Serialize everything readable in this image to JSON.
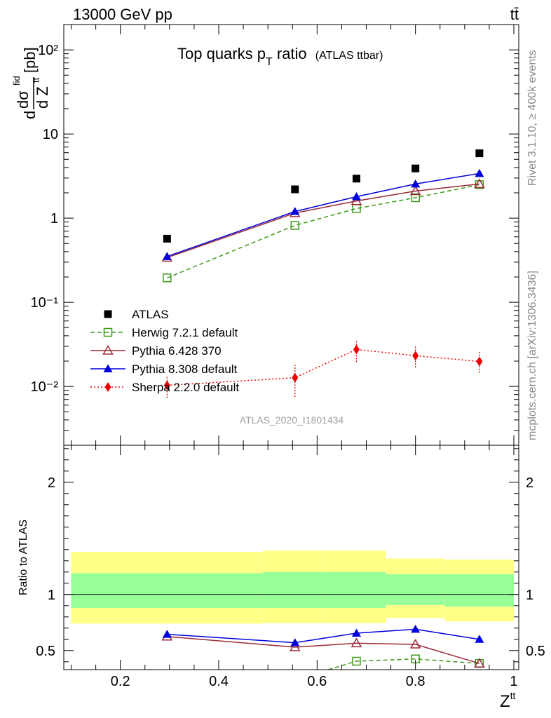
{
  "header": {
    "left": "13000 GeV pp",
    "right": "tt̄"
  },
  "side_text": {
    "rivet": "Rivet 3.1.10, ≥ 400k events",
    "mcplots": "mcplots.cern.ch [arXiv:1306.3436]"
  },
  "analysis_id": "ATLAS_2020_I1801434",
  "chart_data": [
    {
      "type": "scatter",
      "title": "Top quarks p",
      "title_sub": "T",
      "title_tail": " ratio",
      "title_small": "(ATLAS ttbar)",
      "ylabel_parts": [
        "d",
        "dσ",
        "fid",
        "d Z",
        "tt",
        "[pb]"
      ],
      "yscale": "log",
      "ylim": [
        0.002,
        200
      ],
      "xlim": [
        0.085,
        1.01
      ],
      "ytick_labels": [
        "10⁻²",
        "10⁻¹",
        "1",
        "10",
        "10²"
      ],
      "ytick_values": [
        0.01,
        0.1,
        1,
        10,
        100
      ],
      "legend_position": "bottom-left",
      "series": [
        {
          "name": "ATLAS",
          "color": "#000000",
          "marker": "square-filled",
          "line": "none",
          "x": [
            0.295,
            0.555,
            0.68,
            0.8,
            0.93
          ],
          "y": [
            0.57,
            2.2,
            2.95,
            3.9,
            5.9
          ]
        },
        {
          "name": "Herwig 7.2.1 default",
          "color": "#3d9a1b",
          "marker": "square-open",
          "line": "dashed",
          "x": [
            0.295,
            0.555,
            0.68,
            0.8,
            0.93
          ],
          "y": [
            0.195,
            0.82,
            1.3,
            1.75,
            2.5
          ]
        },
        {
          "name": "Pythia 6.428 370",
          "color": "#9c2a3a",
          "marker": "triangle-open",
          "line": "solid",
          "x": [
            0.295,
            0.555,
            0.68,
            0.8,
            0.93
          ],
          "y": [
            0.34,
            1.15,
            1.6,
            2.1,
            2.55
          ]
        },
        {
          "name": "Pythia 8.308 default",
          "color": "#0000dd",
          "marker": "triangle-filled",
          "line": "solid",
          "x": [
            0.295,
            0.555,
            0.68,
            0.8,
            0.93
          ],
          "y": [
            0.35,
            1.2,
            1.8,
            2.55,
            3.4
          ]
        },
        {
          "name": "Sherpa 2.2.0 default",
          "color": "#ee0000",
          "marker": "diamond-filled",
          "line": "dotted",
          "x": [
            0.295,
            0.555,
            0.68,
            0.8,
            0.93
          ],
          "y": [
            0.0103,
            0.0127,
            0.0275,
            0.0232,
            0.0198
          ],
          "err_lo": [
            0.0073,
            0.0075,
            0.0195,
            0.0168,
            0.0145
          ],
          "err_hi": [
            0.0135,
            0.0185,
            0.036,
            0.031,
            0.0265
          ]
        }
      ]
    },
    {
      "type": "line",
      "ylabel": "Ratio to ATLAS",
      "xlabel": "Z",
      "xlabel_sup": "tt",
      "ylim": [
        0.33,
        2.33
      ],
      "xlim": [
        0.085,
        1.01
      ],
      "xtick_labels": [
        "0.2",
        "0.4",
        "0.6",
        "0.8",
        "1"
      ],
      "xtick_values": [
        0.2,
        0.4,
        0.6,
        0.8,
        1.0
      ],
      "ytick_labels": [
        "0.5",
        "1",
        "2"
      ],
      "ytick_values": [
        0.5,
        1,
        2
      ],
      "reference_line": 1,
      "bands": [
        {
          "x0": 0.1,
          "x1": 0.49,
          "inner": [
            0.88,
            1.19
          ],
          "outer": [
            0.74,
            1.38
          ]
        },
        {
          "x0": 0.49,
          "x1": 0.62,
          "inner": [
            0.88,
            1.2
          ],
          "outer": [
            0.745,
            1.39
          ]
        },
        {
          "x0": 0.62,
          "x1": 0.74,
          "inner": [
            0.88,
            1.2
          ],
          "outer": [
            0.745,
            1.39
          ]
        },
        {
          "x0": 0.74,
          "x1": 0.86,
          "inner": [
            0.905,
            1.18
          ],
          "outer": [
            0.79,
            1.32
          ]
        },
        {
          "x0": 0.86,
          "x1": 1.0,
          "inner": [
            0.89,
            1.18
          ],
          "outer": [
            0.76,
            1.31
          ]
        }
      ],
      "series": [
        {
          "name": "Herwig 7.2.1 default",
          "color": "#3d9a1b",
          "marker": "square-open",
          "line": "dashed",
          "x": [
            0.68,
            0.8,
            0.93
          ],
          "y": [
            0.405,
            0.425,
            0.385
          ],
          "enter_from": [
            0.6,
            0.3
          ]
        },
        {
          "name": "Pythia 6.428 370",
          "color": "#9c2a3a",
          "marker": "triangle-open",
          "line": "solid",
          "x": [
            0.295,
            0.555,
            0.68,
            0.8,
            0.93
          ],
          "y": [
            0.625,
            0.53,
            0.565,
            0.555,
            0.385
          ]
        },
        {
          "name": "Pythia 8.308 default",
          "color": "#0000dd",
          "marker": "triangle-filled",
          "line": "solid",
          "x": [
            0.295,
            0.555,
            0.68,
            0.8,
            0.93
          ],
          "y": [
            0.645,
            0.57,
            0.655,
            0.69,
            0.6
          ],
          "err": [
            0.025,
            0.03,
            0.025,
            0.02,
            0.0
          ]
        }
      ]
    }
  ]
}
